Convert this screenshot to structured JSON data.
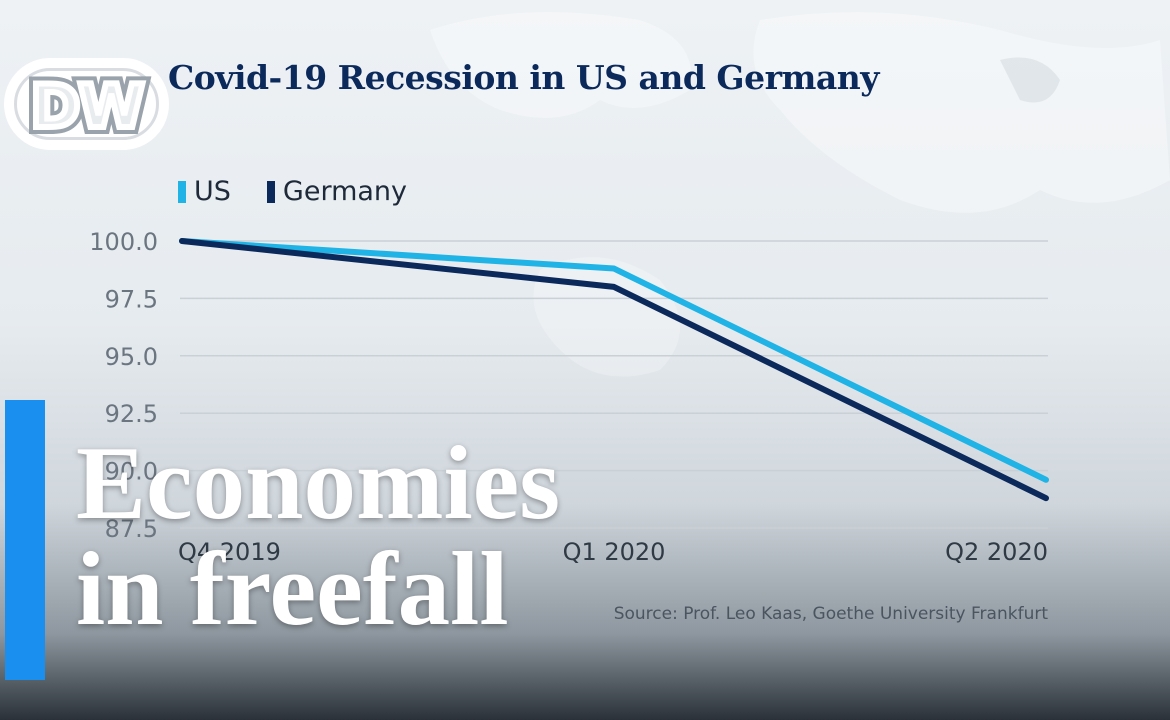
{
  "brand": {
    "logo_text": "DW",
    "accent_color": "#1a8ff0"
  },
  "headline": {
    "line1": "Economies",
    "line2": "in freefall"
  },
  "chart_data": {
    "type": "line",
    "title": "Covid-19 Recession in US and Germany",
    "categories": [
      "Q4 2019",
      "Q1 2020",
      "Q2 2020"
    ],
    "y_ticks": [
      "100.0",
      "97.5",
      "95.0",
      "92.5",
      "90.0",
      "87.5"
    ],
    "ylim": [
      87.5,
      100.0
    ],
    "grid": true,
    "legend_position": "top-left",
    "series": [
      {
        "name": "US",
        "color": "#1fb3e6",
        "values": [
          100.0,
          98.8,
          89.6
        ]
      },
      {
        "name": "Germany",
        "color": "#0b2a5b",
        "values": [
          100.0,
          98.0,
          88.8
        ]
      }
    ],
    "source": "Source: Prof. Leo Kaas, Goethe University Frankfurt"
  }
}
